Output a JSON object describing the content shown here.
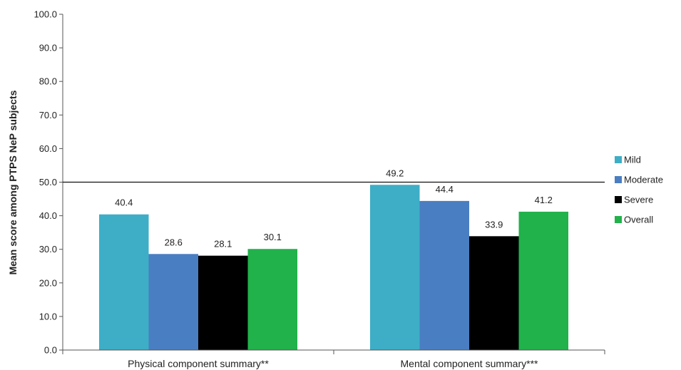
{
  "chart_data": {
    "type": "bar",
    "categories": [
      "Physical component summary**",
      "Mental component summary***"
    ],
    "series": [
      {
        "name": "Mild",
        "values": [
          40.4,
          49.2
        ],
        "color": "#3DAEC6"
      },
      {
        "name": "Moderate",
        "values": [
          28.6,
          44.4
        ],
        "color": "#4A7EC2"
      },
      {
        "name": "Severe",
        "values": [
          28.1,
          33.9
        ],
        "color": "#000000"
      },
      {
        "name": "Overall",
        "values": [
          30.1,
          41.2
        ],
        "color": "#21B24B"
      }
    ],
    "value_labels": [
      [
        "40.4",
        "49.2"
      ],
      [
        "28.6",
        "44.4"
      ],
      [
        "28.1",
        "33.9"
      ],
      [
        "30.1",
        "41.2"
      ]
    ],
    "xlabel": "",
    "ylabel": "Mean score among PTPS NeP subjects",
    "ylim": [
      0,
      100
    ],
    "yticks": [
      "0.0",
      "10.0",
      "20.0",
      "30.0",
      "40.0",
      "50.0",
      "60.0",
      "70.0",
      "80.0",
      "90.0",
      "100.0"
    ],
    "reference_line": 50,
    "grid": false,
    "legend_position": "right"
  }
}
